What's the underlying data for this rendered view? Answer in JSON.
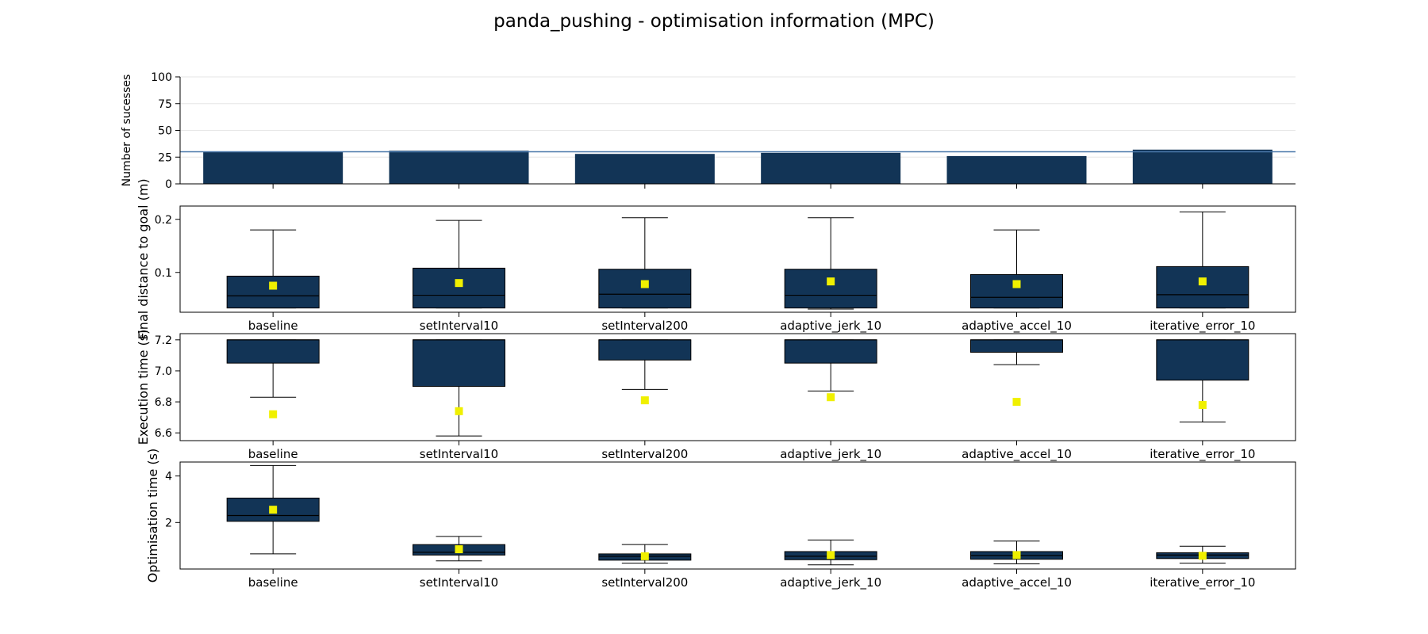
{
  "title": "panda_pushing - optimisation information (MPC)",
  "colors": {
    "bar": "#123456",
    "box": "#123456",
    "mean_marker": "#f0f000",
    "hline": "#4a78aa",
    "grid": "#e6e6e6"
  },
  "chart_data": [
    {
      "type": "bar",
      "ylabel": "Number of sucesses",
      "categories": [
        "baseline",
        "setInterval10",
        "setInterval200",
        "adaptive_jerk_10",
        "adaptive_accel_10",
        "iterative_error_10"
      ],
      "values": [
        30,
        31,
        28,
        29,
        26,
        32
      ],
      "ylim": [
        0,
        100
      ],
      "yticks": [
        0,
        25,
        50,
        75,
        100
      ],
      "reference_line": 30,
      "grid": true
    },
    {
      "type": "box",
      "ylabel": "Final distance to goal (m)",
      "categories": [
        "baseline",
        "setInterval10",
        "setInterval200",
        "adaptive_jerk_10",
        "adaptive_accel_10",
        "iterative_error_10"
      ],
      "ylim": [
        0.025,
        0.225
      ],
      "yticks": [
        0.1,
        0.2
      ],
      "ytick_labels": [
        "0.1",
        "0.2"
      ],
      "boxes": [
        {
          "whislo": 0.033,
          "q1": 0.033,
          "med": 0.056,
          "q3": 0.093,
          "whishi": 0.18,
          "mean": 0.075
        },
        {
          "whislo": 0.033,
          "q1": 0.033,
          "med": 0.057,
          "q3": 0.108,
          "whishi": 0.198,
          "mean": 0.08
        },
        {
          "whislo": 0.033,
          "q1": 0.033,
          "med": 0.059,
          "q3": 0.106,
          "whishi": 0.203,
          "mean": 0.078
        },
        {
          "whislo": 0.031,
          "q1": 0.033,
          "med": 0.057,
          "q3": 0.106,
          "whishi": 0.203,
          "mean": 0.083
        },
        {
          "whislo": 0.033,
          "q1": 0.033,
          "med": 0.053,
          "q3": 0.096,
          "whishi": 0.18,
          "mean": 0.078
        },
        {
          "whislo": 0.033,
          "q1": 0.033,
          "med": 0.058,
          "q3": 0.111,
          "whishi": 0.214,
          "mean": 0.083
        }
      ]
    },
    {
      "type": "box",
      "ylabel": "Execution time (s)",
      "categories": [
        "baseline",
        "setInterval10",
        "setInterval200",
        "adaptive_jerk_10",
        "adaptive_accel_10",
        "iterative_error_10"
      ],
      "ylim": [
        6.55,
        7.24
      ],
      "yticks": [
        6.6,
        6.8,
        7.0,
        7.2
      ],
      "ytick_labels": [
        "6.6",
        "6.8",
        "7.0",
        "7.2"
      ],
      "boxes": [
        {
          "whislo": 6.83,
          "q1": 7.05,
          "med": 7.2,
          "q3": 7.2,
          "whishi": 7.2,
          "mean": 6.72
        },
        {
          "whislo": 6.58,
          "q1": 6.9,
          "med": 7.2,
          "q3": 7.2,
          "whishi": 7.2,
          "mean": 6.74
        },
        {
          "whislo": 6.88,
          "q1": 7.07,
          "med": 7.2,
          "q3": 7.2,
          "whishi": 7.2,
          "mean": 6.81
        },
        {
          "whislo": 6.87,
          "q1": 7.05,
          "med": 7.2,
          "q3": 7.2,
          "whishi": 7.2,
          "mean": 6.83
        },
        {
          "whislo": 7.04,
          "q1": 7.12,
          "med": 7.2,
          "q3": 7.2,
          "whishi": 7.2,
          "mean": 6.8
        },
        {
          "whislo": 6.67,
          "q1": 6.94,
          "med": 7.2,
          "q3": 7.2,
          "whishi": 7.2,
          "mean": 6.78
        }
      ]
    },
    {
      "type": "box",
      "ylabel": "Optimisation time (s)",
      "categories": [
        "baseline",
        "setInterval10",
        "setInterval200",
        "adaptive_jerk_10",
        "adaptive_accel_10",
        "iterative_error_10"
      ],
      "ylim": [
        0.0,
        4.6
      ],
      "yticks": [
        2,
        4
      ],
      "ytick_labels": [
        "2",
        "4"
      ],
      "boxes": [
        {
          "whislo": 0.65,
          "q1": 2.05,
          "med": 2.3,
          "q3": 3.05,
          "whishi": 4.45,
          "mean": 2.55
        },
        {
          "whislo": 0.35,
          "q1": 0.6,
          "med": 0.72,
          "q3": 1.05,
          "whishi": 1.4,
          "mean": 0.85
        },
        {
          "whislo": 0.25,
          "q1": 0.38,
          "med": 0.55,
          "q3": 0.65,
          "whishi": 1.05,
          "mean": 0.55
        },
        {
          "whislo": 0.18,
          "q1": 0.4,
          "med": 0.55,
          "q3": 0.75,
          "whishi": 1.25,
          "mean": 0.6
        },
        {
          "whislo": 0.22,
          "q1": 0.42,
          "med": 0.58,
          "q3": 0.75,
          "whishi": 1.2,
          "mean": 0.6
        },
        {
          "whislo": 0.25,
          "q1": 0.45,
          "med": 0.6,
          "q3": 0.7,
          "whishi": 0.98,
          "mean": 0.57
        }
      ]
    }
  ]
}
